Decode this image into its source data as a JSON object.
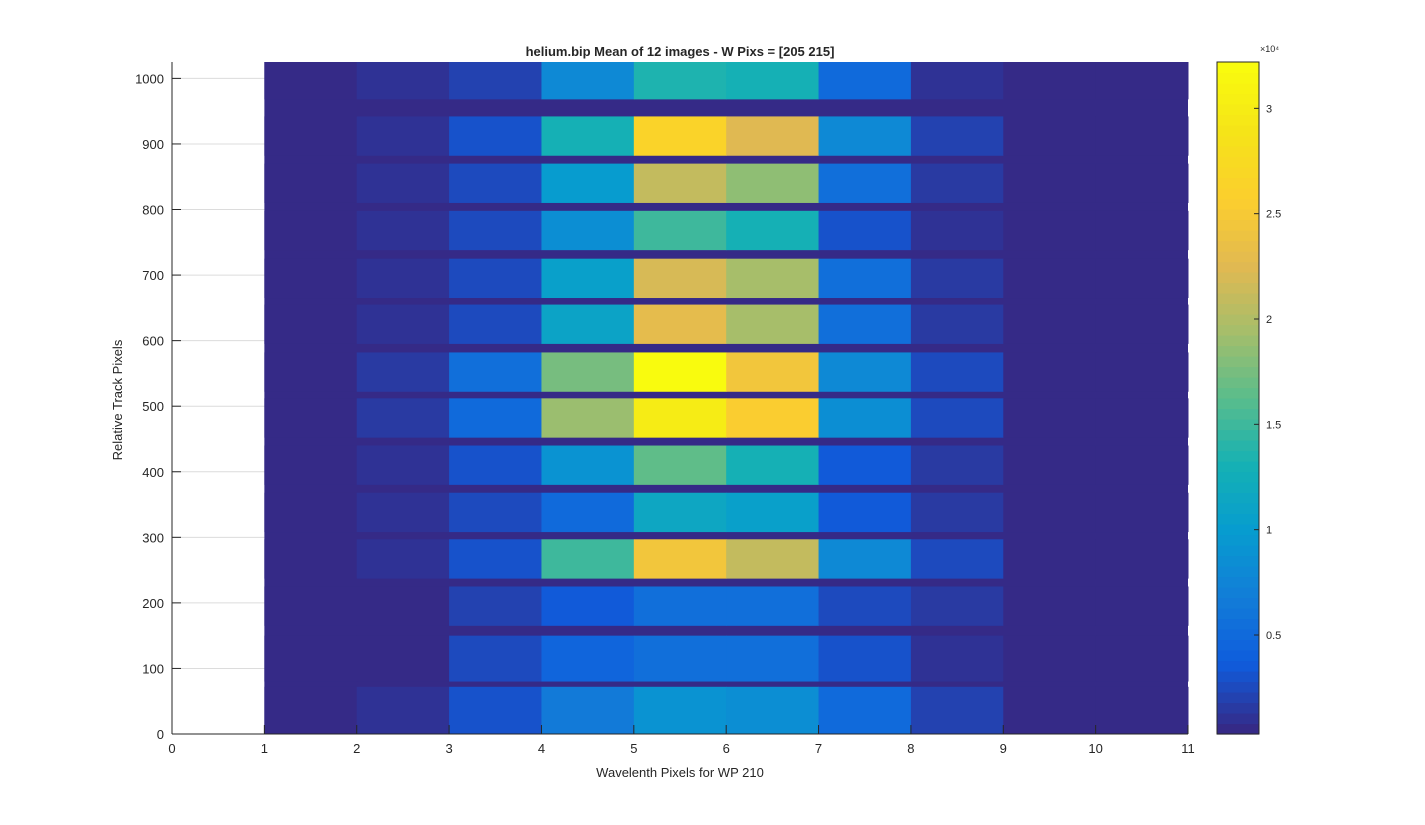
{
  "chart_data": {
    "type": "heatmap",
    "title": "helium.bip  Mean of 12 images - W Pixs = [205  215]",
    "xlabel": "Wavelenth Pixels for WP 210",
    "ylabel": "Relative Track Pixels",
    "xlim": [
      0,
      11
    ],
    "ylim": [
      0,
      1025
    ],
    "grid": true,
    "x_ticks": [
      "0",
      "1",
      "2",
      "3",
      "4",
      "5",
      "6",
      "7",
      "8",
      "9",
      "10",
      "11"
    ],
    "y_ticks": [
      "0",
      "100",
      "200",
      "300",
      "400",
      "500",
      "600",
      "700",
      "800",
      "900",
      "1000"
    ],
    "columns_x_start": [
      1,
      2,
      3,
      4,
      5,
      6,
      7,
      8,
      9,
      10
    ],
    "track_bands": [
      {
        "y0": 0,
        "y1": 72,
        "values": [
          400,
          900,
          2800,
          6500,
          9000,
          8500,
          5000,
          2000,
          600,
          300
        ]
      },
      {
        "y0": 80,
        "y1": 150,
        "values": [
          300,
          700,
          2500,
          4500,
          5500,
          5500,
          3000,
          1200,
          400,
          300
        ]
      },
      {
        "y0": 165,
        "y1": 225,
        "values": [
          300,
          600,
          2200,
          3500,
          5500,
          5500,
          2500,
          1500,
          400,
          300
        ]
      },
      {
        "y0": 237,
        "y1": 297,
        "values": [
          400,
          1200,
          2800,
          15000,
          24500,
          21000,
          8000,
          2500,
          600,
          300
        ]
      },
      {
        "y0": 308,
        "y1": 368,
        "values": [
          400,
          800,
          2500,
          5000,
          11500,
          10500,
          3500,
          1500,
          400,
          300
        ]
      },
      {
        "y0": 380,
        "y1": 440,
        "values": [
          400,
          800,
          2800,
          9000,
          16500,
          13000,
          3500,
          1500,
          400,
          300
        ]
      },
      {
        "y0": 452,
        "y1": 512,
        "values": [
          500,
          1500,
          5000,
          19000,
          30000,
          25500,
          8500,
          2500,
          600,
          300
        ]
      },
      {
        "y0": 522,
        "y1": 582,
        "values": [
          500,
          1600,
          5500,
          17500,
          32000,
          24500,
          8000,
          2500,
          600,
          300
        ]
      },
      {
        "y0": 595,
        "y1": 655,
        "values": [
          400,
          900,
          2600,
          11000,
          23000,
          19500,
          5500,
          1600,
          400,
          300
        ]
      },
      {
        "y0": 665,
        "y1": 725,
        "values": [
          400,
          900,
          2600,
          10500,
          22000,
          19500,
          5500,
          1600,
          400,
          300
        ]
      },
      {
        "y0": 738,
        "y1": 798,
        "values": [
          400,
          800,
          2500,
          8500,
          15000,
          13000,
          3000,
          1200,
          400,
          300
        ]
      },
      {
        "y0": 810,
        "y1": 870,
        "values": [
          400,
          900,
          2600,
          10000,
          21000,
          18500,
          5500,
          1600,
          400,
          300
        ]
      },
      {
        "y0": 882,
        "y1": 942,
        "values": [
          400,
          1000,
          2800,
          13000,
          26500,
          22500,
          8000,
          2000,
          500,
          300
        ]
      },
      {
        "y0": 968,
        "y1": 1025,
        "values": [
          400,
          800,
          2200,
          8000,
          13500,
          13000,
          5000,
          1200,
          400,
          300
        ]
      }
    ],
    "background_value": 300,
    "colorbar": {
      "range": [
        300,
        32200
      ],
      "ticks": [
        5000,
        10000,
        15000,
        20000,
        25000,
        30000
      ],
      "tick_labels": [
        "0.5",
        "1",
        "1.5",
        "2",
        "2.5",
        "3"
      ],
      "multiplier_label": "×10⁴",
      "colormap": "parula",
      "discrete_levels": 64
    }
  }
}
